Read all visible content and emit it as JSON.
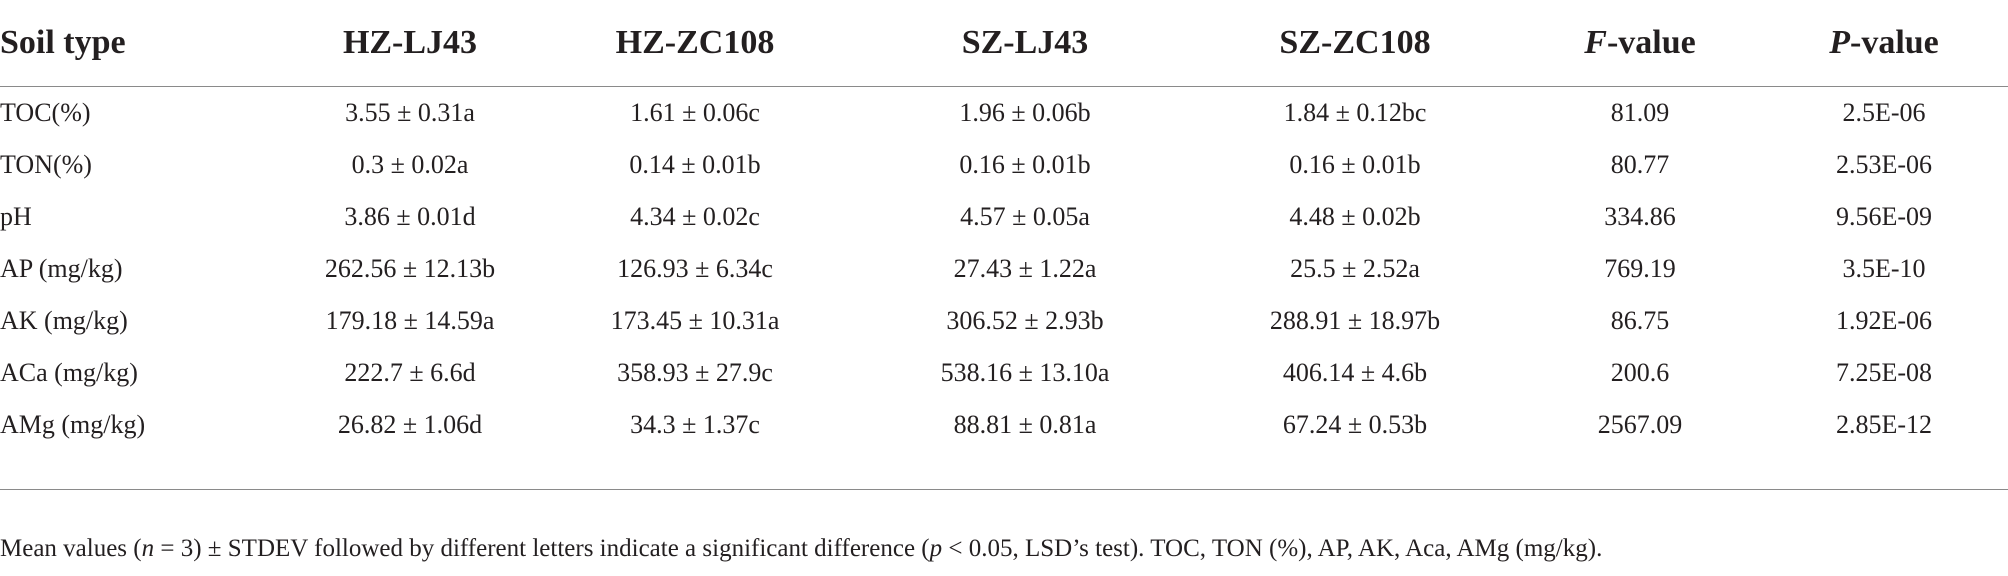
{
  "table": {
    "headers": {
      "soil_type": "Soil type",
      "c1": "HZ-LJ43",
      "c2": "HZ-ZC108",
      "c3": "SZ-LJ43",
      "c4": "SZ-ZC108",
      "f_italic": "F",
      "f_rest": "-value",
      "p_italic": "P",
      "p_rest": "-value"
    },
    "rows": [
      {
        "label": "TOC(%)",
        "c1": "3.55 ± 0.31a",
        "c2": "1.61 ± 0.06c",
        "c3": "1.96 ± 0.06b",
        "c4": "1.84 ± 0.12bc",
        "f": "81.09",
        "p": "2.5E-06"
      },
      {
        "label": "TON(%)",
        "c1": "0.3 ± 0.02a",
        "c2": "0.14 ± 0.01b",
        "c3": "0.16 ± 0.01b",
        "c4": "0.16 ± 0.01b",
        "f": "80.77",
        "p": "2.53E-06"
      },
      {
        "label": "pH",
        "c1": "3.86 ± 0.01d",
        "c2": "4.34 ± 0.02c",
        "c3": "4.57 ± 0.05a",
        "c4": "4.48 ± 0.02b",
        "f": "334.86",
        "p": "9.56E-09"
      },
      {
        "label": "AP (mg/kg)",
        "c1": "262.56 ± 12.13b",
        "c2": "126.93 ± 6.34c",
        "c3": "27.43 ± 1.22a",
        "c4": "25.5 ± 2.52a",
        "f": "769.19",
        "p": "3.5E-10"
      },
      {
        "label": "AK (mg/kg)",
        "c1": "179.18 ± 14.59a",
        "c2": "173.45 ± 10.31a",
        "c3": "306.52 ± 2.93b",
        "c4": "288.91 ± 18.97b",
        "f": "86.75",
        "p": "1.92E-06"
      },
      {
        "label": "ACa (mg/kg)",
        "c1": "222.7 ± 6.6d",
        "c2": "358.93 ± 27.9c",
        "c3": "538.16 ± 13.10a",
        "c4": "406.14 ± 4.6b",
        "f": "200.6",
        "p": "7.25E-08"
      },
      {
        "label": "AMg (mg/kg)",
        "c1": "26.82 ± 1.06d",
        "c2": "34.3 ± 1.37c",
        "c3": "88.81 ± 0.81a",
        "c4": "67.24 ± 0.53b",
        "f": "2567.09",
        "p": "2.85E-12"
      }
    ]
  },
  "footnote": {
    "part1": "Mean values (",
    "n_italic": "n",
    "part2": " = 3) ± STDEV followed by different letters indicate a significant difference (",
    "p_italic": "p",
    "part3": " < 0.05, LSD’s test). TOC, TON (%), AP, AK, Aca, AMg (mg/kg)."
  }
}
